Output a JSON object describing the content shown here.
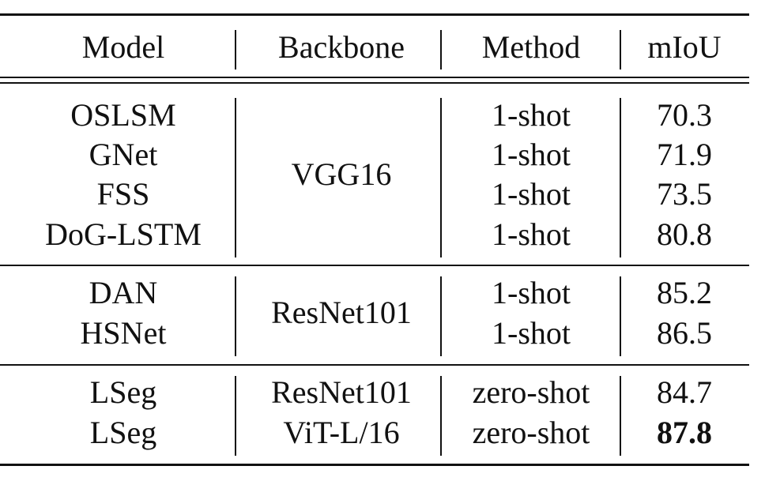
{
  "table": {
    "headers": {
      "model": "Model",
      "backbone": "Backbone",
      "method": "Method",
      "miou": "mIoU"
    },
    "groups": [
      {
        "backbone": "VGG16",
        "rows": [
          {
            "model": "OSLSM",
            "method": "1-shot",
            "miou": "70.3"
          },
          {
            "model": "GNet",
            "method": "1-shot",
            "miou": "71.9"
          },
          {
            "model": "FSS",
            "method": "1-shot",
            "miou": "73.5"
          },
          {
            "model": "DoG-LSTM",
            "method": "1-shot",
            "miou": "80.8"
          }
        ]
      },
      {
        "backbone": "ResNet101",
        "rows": [
          {
            "model": "DAN",
            "method": "1-shot",
            "miou": "85.2"
          },
          {
            "model": "HSNet",
            "method": "1-shot",
            "miou": "86.5"
          }
        ]
      },
      {
        "rows": [
          {
            "model": "LSeg",
            "backbone": "ResNet101",
            "method": "zero-shot",
            "miou": "84.7"
          },
          {
            "model": "LSeg",
            "backbone": "ViT-L/16",
            "method": "zero-shot",
            "miou": "87.8",
            "bold": true
          }
        ]
      }
    ]
  }
}
